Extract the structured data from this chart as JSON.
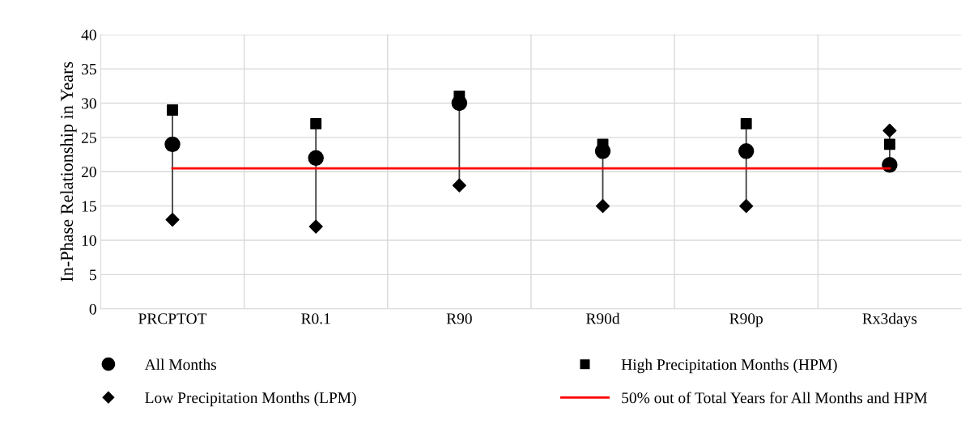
{
  "chart_data": {
    "type": "scatter",
    "ylabel": "In-Phase Relationship in Years",
    "categories": [
      "PRCPTOT",
      "R0.1",
      "R90",
      "R90d",
      "R90p",
      "Rx3days"
    ],
    "series": [
      {
        "name": "All Months",
        "color": "#000000",
        "marker": "circle",
        "values": [
          24,
          22,
          30,
          23,
          23,
          21
        ]
      },
      {
        "name": "High Precipitation Months (HPM)",
        "color": "#000000",
        "marker": "square",
        "values": [
          29,
          27,
          31,
          24,
          27,
          24
        ]
      },
      {
        "name": "Low Precipitation Months (LPM)",
        "color": "#000000",
        "marker": "diamond",
        "values": [
          13,
          12,
          18,
          15,
          15,
          26
        ]
      },
      {
        "name": "50% out of Total Years for All Months and HPM",
        "type": "line",
        "color": "#ff0000",
        "marker": "none",
        "line_style": "solid",
        "values": [
          20.5,
          20.5,
          20.5,
          20.5,
          20.5,
          20.5
        ]
      }
    ],
    "ylim": [
      0,
      40
    ],
    "yticks": [
      0,
      5,
      10,
      15,
      20,
      25,
      30,
      35,
      40
    ],
    "grid": true,
    "legend": "bottom"
  }
}
